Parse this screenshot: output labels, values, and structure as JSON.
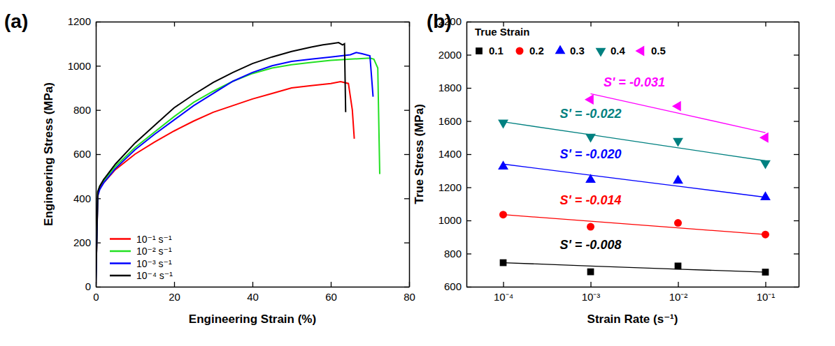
{
  "chart_data": [
    {
      "type": "line",
      "title": "(a)",
      "x_label": "Engineering Strain (%)",
      "y_label": "Engineering Stress (MPa)",
      "xlim": [
        0,
        80
      ],
      "xticks": [
        0,
        20,
        40,
        60,
        80
      ],
      "ylim": [
        0,
        1200
      ],
      "yticks": [
        0,
        200,
        400,
        600,
        800,
        1000,
        1200
      ],
      "legend": "lower left",
      "series": [
        {
          "name": "10⁻¹ s⁻¹",
          "color": "#ff0000",
          "x": [
            0,
            0.5,
            1,
            2,
            5,
            10,
            15,
            20,
            25,
            30,
            35,
            40,
            45,
            50,
            55,
            60,
            62.5,
            64.5,
            65.5,
            66
          ],
          "values": [
            0,
            420,
            445,
            470,
            530,
            600,
            655,
            705,
            750,
            790,
            820,
            850,
            875,
            900,
            910,
            920,
            928,
            920,
            800,
            670
          ]
        },
        {
          "name": "10⁻² s⁻¹",
          "color": "#22e022",
          "x": [
            0,
            0.5,
            1,
            2,
            5,
            10,
            15,
            20,
            25,
            30,
            35,
            40,
            45,
            50,
            55,
            60,
            65,
            70,
            71,
            72,
            72.5
          ],
          "values": [
            0,
            430,
            455,
            480,
            545,
            630,
            700,
            770,
            835,
            885,
            930,
            965,
            990,
            1005,
            1015,
            1025,
            1030,
            1035,
            1030,
            990,
            510
          ]
        },
        {
          "name": "10⁻³ s⁻¹",
          "color": "#0000ff",
          "x": [
            0,
            0.5,
            1,
            2,
            5,
            10,
            15,
            20,
            25,
            30,
            35,
            40,
            45,
            50,
            55,
            60,
            65,
            66.5,
            68,
            70,
            70.8
          ],
          "values": [
            0,
            410,
            440,
            470,
            535,
            620,
            690,
            755,
            820,
            875,
            930,
            970,
            1000,
            1020,
            1030,
            1040,
            1050,
            1060,
            1055,
            1045,
            860
          ]
        },
        {
          "name": "10⁻⁴ s⁻¹",
          "color": "#000000",
          "x": [
            0,
            0.5,
            1,
            2,
            5,
            10,
            15,
            20,
            25,
            30,
            35,
            40,
            45,
            50,
            55,
            58,
            60,
            62,
            63,
            63.5,
            63.8
          ],
          "values": [
            0,
            430,
            455,
            485,
            555,
            650,
            730,
            810,
            870,
            925,
            970,
            1010,
            1040,
            1065,
            1085,
            1095,
            1100,
            1105,
            1095,
            1100,
            790
          ]
        }
      ]
    },
    {
      "type": "scatter",
      "title": "(b)",
      "x_label": "Strain Rate (s⁻¹)",
      "y_label": "True Stress (MPa)",
      "log": "x",
      "xlim": [
        3.8e-05,
        0.24
      ],
      "xticks": [
        {
          "value": 0.0001,
          "label": "10⁻⁴"
        },
        {
          "value": 0.001,
          "label": "10⁻³"
        },
        {
          "value": 0.01,
          "label": "10⁻²"
        },
        {
          "value": 0.1,
          "label": "10⁻¹"
        }
      ],
      "ylim": [
        600,
        2200
      ],
      "yticks": [
        600,
        800,
        1000,
        1200,
        1400,
        1600,
        1800,
        2000,
        2200
      ],
      "legend": "upper left",
      "legend_title": "True Strain",
      "x": [
        0.0001,
        0.001,
        0.01,
        0.1
      ],
      "series": [
        {
          "name": "0.1",
          "color": "#000000",
          "marker": "square",
          "values": [
            745,
            690,
            725,
            688
          ],
          "fit_values": [
            745,
            725,
            706,
            688
          ],
          "slope_label": "S' = -0.008"
        },
        {
          "name": "0.2",
          "color": "#ff0000",
          "marker": "circle",
          "values": [
            1035,
            962,
            985,
            915
          ],
          "fit_values": [
            1035,
            995,
            955,
            915
          ],
          "slope_label": "S' = -0.014"
        },
        {
          "name": "0.3",
          "color": "#0000ff",
          "marker": "triangle-up",
          "values": [
            1325,
            1245,
            1240,
            1140
          ],
          "fit_values": [
            1340,
            1273,
            1207,
            1140
          ],
          "slope_label": "S' = -0.020"
        },
        {
          "name": "0.4",
          "color": "#008080",
          "marker": "triangle-down",
          "values": [
            1590,
            1505,
            1480,
            1345
          ],
          "fit_values": [
            1595,
            1517,
            1438,
            1360
          ],
          "slope_label": "S' = -0.022"
        },
        {
          "name": "0.5",
          "color": "#ff00ff",
          "marker": "triangle-left",
          "values": [
            null,
            1730,
            1690,
            1500
          ],
          "fit_values": [
            null,
            1765,
            1648,
            1530
          ],
          "slope_label": "S' = -0.031"
        }
      ]
    }
  ]
}
